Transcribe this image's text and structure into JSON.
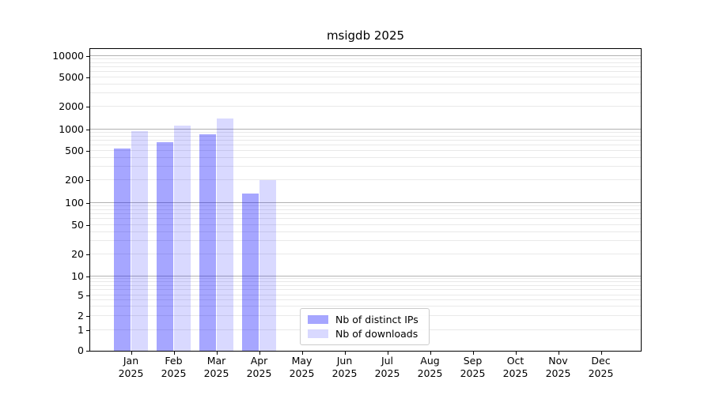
{
  "chart_data": {
    "type": "bar",
    "title": "msigdb 2025",
    "categories": [
      "Jan 2025",
      "Feb 2025",
      "Mar 2025",
      "Apr 2025",
      "May 2025",
      "Jun 2025",
      "Jul 2025",
      "Aug 2025",
      "Sep 2025",
      "Oct 2025",
      "Nov 2025",
      "Dec 2025"
    ],
    "series": [
      {
        "name": "Nb of distinct IPs",
        "color": "rgba(0,0,255,0.35)",
        "values": [
          530,
          660,
          860,
          133,
          null,
          null,
          null,
          null,
          null,
          null,
          null,
          null
        ]
      },
      {
        "name": "Nb of downloads",
        "color": "rgba(0,0,255,0.15)",
        "values": [
          960,
          1120,
          1380,
          200,
          null,
          null,
          null,
          null,
          null,
          null,
          null,
          null
        ]
      }
    ],
    "yscale": "symlog",
    "yticks": [
      0,
      1,
      2,
      5,
      10,
      20,
      50,
      100,
      200,
      500,
      1000,
      2000,
      5000,
      10000
    ],
    "ylim": [
      0,
      13000
    ],
    "xlabel": "",
    "ylabel": "",
    "grid": "both",
    "legend_position": "lower center"
  },
  "colors": {
    "bar_distinct_ips_flat": "#a8a8f6",
    "bar_downloads_flat": "#d9d9fa",
    "grid_major": "#b2b2b2",
    "grid_minor": "#e9e9e9",
    "spine": "#000000",
    "legend_border": "#cccccc",
    "background": "#ffffff"
  }
}
